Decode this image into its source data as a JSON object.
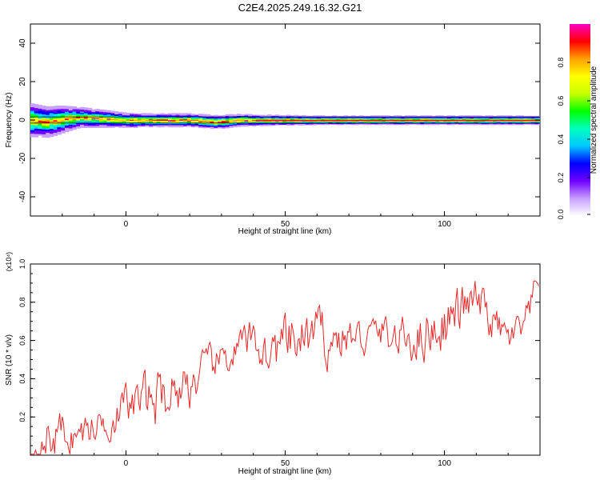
{
  "title": "C2E4.2025.249.16.32.G21",
  "chart_data": [
    {
      "type": "heatmap",
      "xlabel": "Height of straight line (km)",
      "ylabel": "Frequency (Hz)",
      "xlim": [
        -30,
        130
      ],
      "ylim": [
        -50,
        50
      ],
      "xticks": [
        0,
        50,
        100
      ],
      "yticks": [
        -40,
        -20,
        0,
        20,
        40
      ],
      "description_trace": "narrow band centered near 0 Hz, wider and noisier below ~0 km",
      "ridge": [
        {
          "x": -30,
          "y": 0
        },
        {
          "x": -25,
          "y": -1
        },
        {
          "x": -20,
          "y": 0.5
        },
        {
          "x": -15,
          "y": 1.5
        },
        {
          "x": -10,
          "y": 1
        },
        {
          "x": -5,
          "y": 0.5
        },
        {
          "x": 0,
          "y": 0
        },
        {
          "x": 10,
          "y": 0
        },
        {
          "x": 20,
          "y": 0
        },
        {
          "x": 28,
          "y": -1
        },
        {
          "x": 35,
          "y": 0
        },
        {
          "x": 50,
          "y": 0
        },
        {
          "x": 70,
          "y": 0
        },
        {
          "x": 100,
          "y": 0
        },
        {
          "x": 130,
          "y": 0
        }
      ],
      "halfwidth": [
        {
          "x": -30,
          "y": 8
        },
        {
          "x": -22,
          "y": 7
        },
        {
          "x": -15,
          "y": 5
        },
        {
          "x": -5,
          "y": 4
        },
        {
          "x": 5,
          "y": 3
        },
        {
          "x": 20,
          "y": 3
        },
        {
          "x": 30,
          "y": 3
        },
        {
          "x": 40,
          "y": 2.5
        },
        {
          "x": 60,
          "y": 2
        },
        {
          "x": 100,
          "y": 2
        },
        {
          "x": 130,
          "y": 2
        }
      ]
    },
    {
      "type": "line",
      "xlabel": "Height of straight line (km)",
      "ylabel": "SNR (10 * v/v)",
      "multiplier": "(x10⁴)",
      "xlim": [
        -30,
        130
      ],
      "ylim": [
        0,
        1.0
      ],
      "xticks": [
        0,
        50,
        100
      ],
      "yticks": [
        0.2,
        0.4,
        0.6,
        0.8,
        1.0
      ],
      "color": "#e8292a",
      "series": [
        {
          "name": "SNR",
          "x": [
            -30,
            -25,
            -20,
            -15,
            -10,
            -5,
            0,
            5,
            10,
            15,
            20,
            25,
            30,
            35,
            40,
            45,
            50,
            55,
            60,
            65,
            70,
            75,
            80,
            85,
            90,
            95,
            100,
            105,
            110,
            115,
            120,
            125,
            130
          ],
          "values": [
            0.05,
            0.08,
            0.12,
            0.1,
            0.15,
            0.2,
            0.25,
            0.28,
            0.3,
            0.35,
            0.38,
            0.42,
            0.5,
            0.55,
            0.6,
            0.52,
            0.58,
            0.6,
            0.62,
            0.6,
            0.62,
            0.6,
            0.65,
            0.6,
            0.62,
            0.65,
            0.7,
            0.75,
            0.8,
            0.7,
            0.6,
            0.65,
            0.9
          ]
        }
      ]
    }
  ],
  "colorbar": {
    "label": "Normalized spectral amplitude",
    "ticks": [
      "0.0",
      "0.2",
      "0.4",
      "0.6",
      "0.8"
    ],
    "colors": [
      "#ffffff",
      "#c8a0ff",
      "#7000ff",
      "#0000ff",
      "#00c8ff",
      "#00ffc0",
      "#00ff00",
      "#c8ff00",
      "#ffff00",
      "#ffa000",
      "#ff0000",
      "#ff00c8"
    ]
  }
}
